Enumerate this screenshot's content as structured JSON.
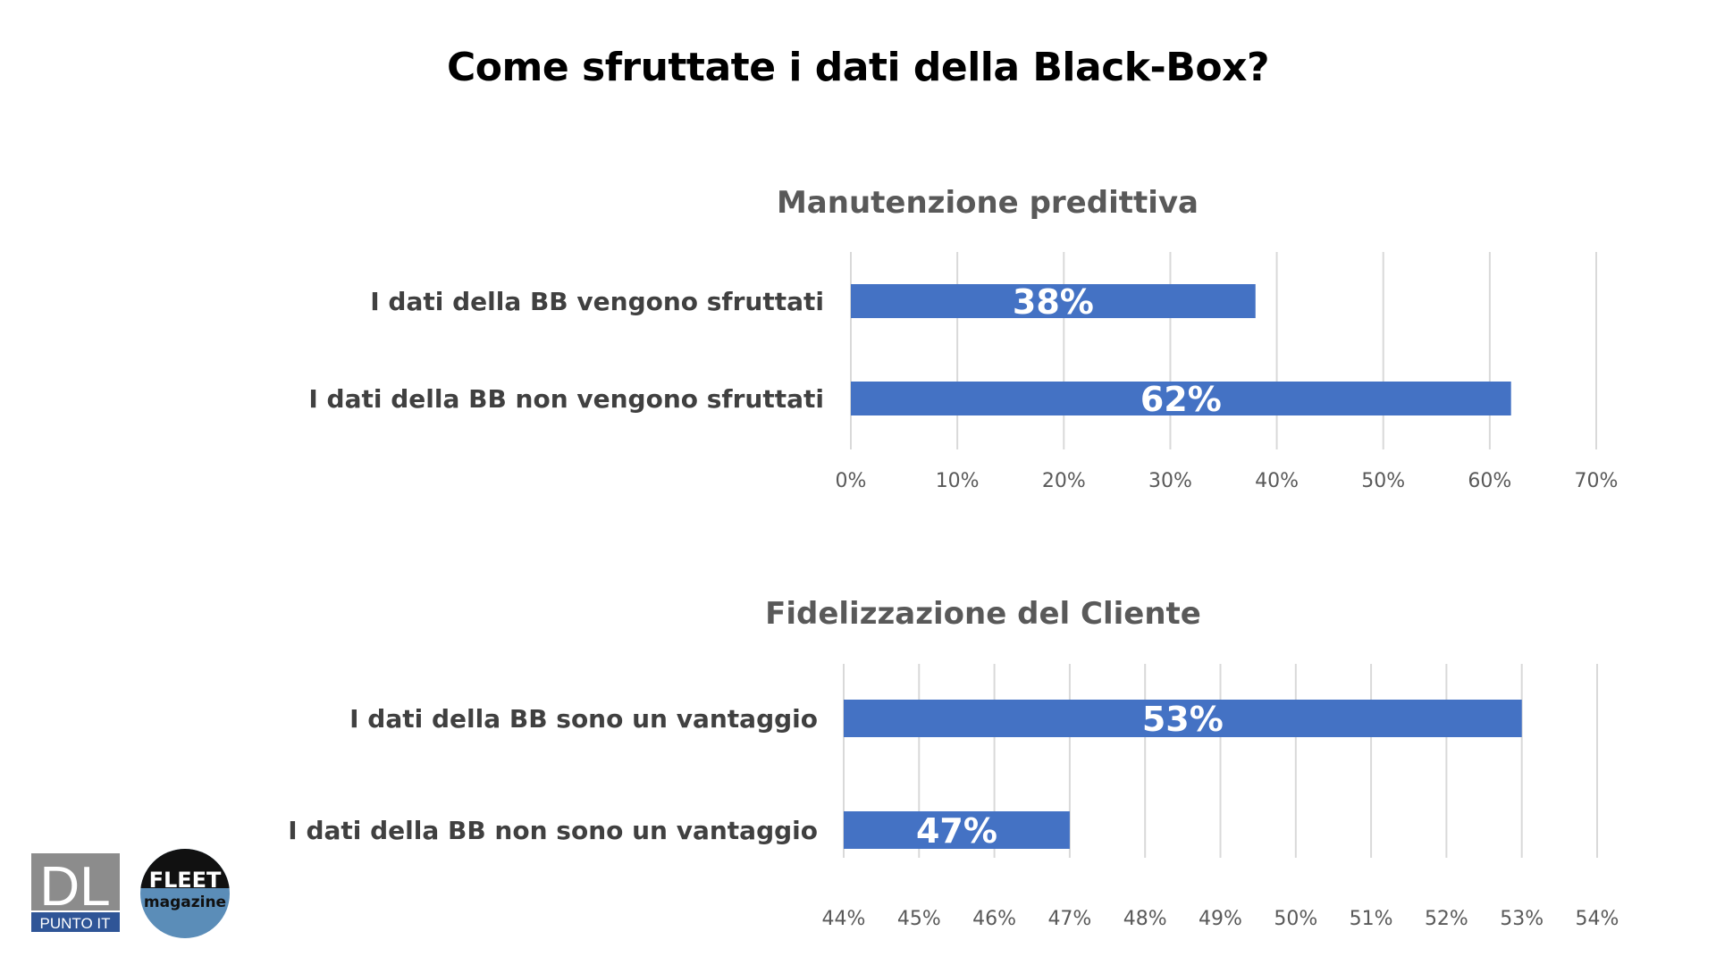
{
  "page": {
    "title": "Come sfruttate i dati della Black-Box?"
  },
  "colors": {
    "bar": "#4472C4",
    "grid": "#D9D9D9",
    "category_text": "#404040",
    "tick_text": "#595959",
    "bar_label": "#FFFFFF"
  },
  "logos": {
    "dl": {
      "top_text": "DL",
      "bottom_text": "PUNTO IT"
    },
    "fleet": {
      "top_text": "FLEET",
      "bottom_text": "magazine"
    }
  },
  "chart_data": [
    {
      "type": "bar",
      "orientation": "horizontal",
      "title": "Manutenzione predittiva",
      "categories": [
        "I dati della BB vengono sfruttati",
        "I dati della BB non vengono sfruttati"
      ],
      "values": [
        38,
        62
      ],
      "data_labels": [
        "38%",
        "62%"
      ],
      "xlim": [
        0,
        70
      ],
      "ticks": [
        0,
        10,
        20,
        30,
        40,
        50,
        60,
        70
      ],
      "tick_labels": [
        "0%",
        "10%",
        "20%",
        "30%",
        "40%",
        "50%",
        "60%",
        "70%"
      ],
      "grid": true,
      "legend": "none"
    },
    {
      "type": "bar",
      "orientation": "horizontal",
      "title": "Fidelizzazione del Cliente",
      "categories": [
        "I dati della BB sono un vantaggio",
        "I dati della BB non sono un vantaggio"
      ],
      "values": [
        53,
        47
      ],
      "data_labels": [
        "53%",
        "47%"
      ],
      "xlim": [
        44,
        54
      ],
      "ticks": [
        44,
        45,
        46,
        47,
        48,
        49,
        50,
        51,
        52,
        53,
        54
      ],
      "tick_labels": [
        "44%",
        "45%",
        "46%",
        "47%",
        "48%",
        "49%",
        "50%",
        "51%",
        "52%",
        "53%",
        "54%"
      ],
      "grid": true,
      "legend": "none"
    }
  ]
}
